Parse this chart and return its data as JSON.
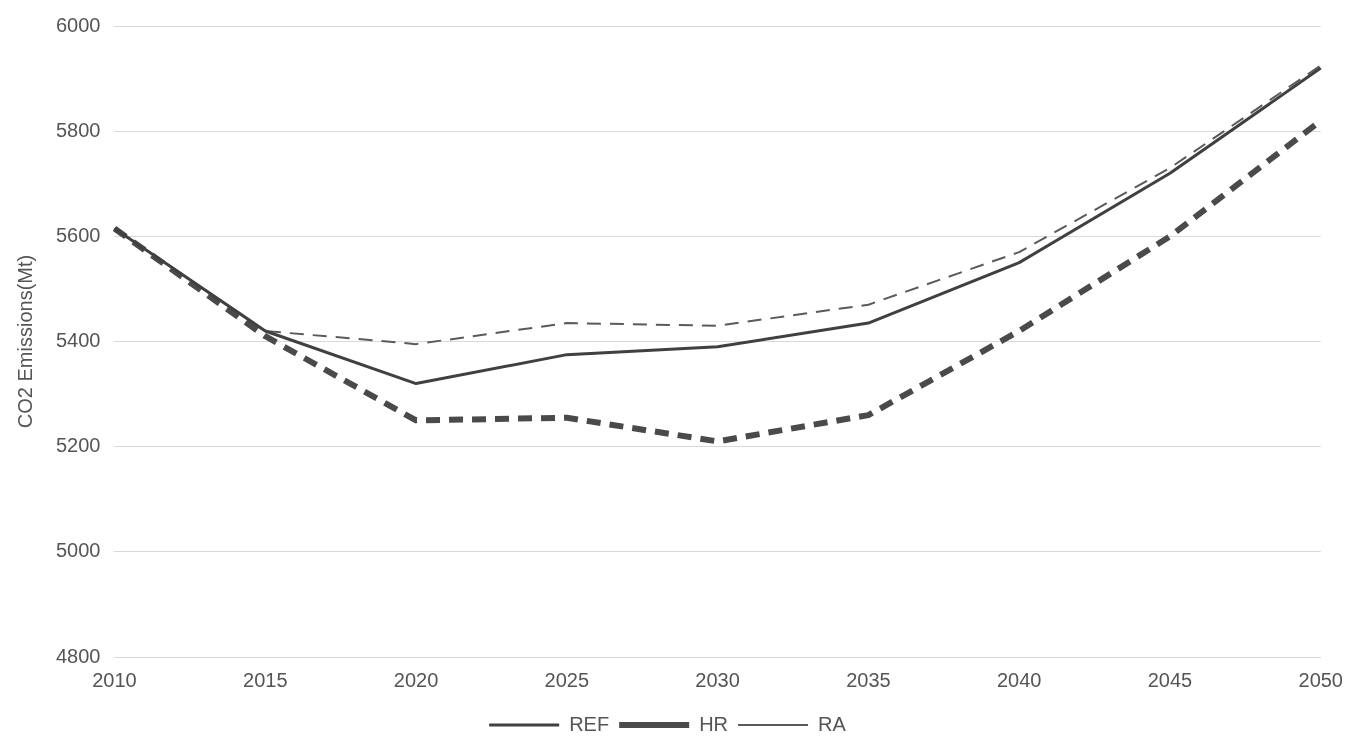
{
  "chart_data": {
    "type": "line",
    "ylabel": "CO2 Emissions(Mt)",
    "categories": [
      "2010",
      "2015",
      "2020",
      "2025",
      "2030",
      "2035",
      "2040",
      "2045",
      "2050"
    ],
    "series": [
      {
        "name": "REF",
        "color": "#404040",
        "line_style": "solid",
        "values": [
          5615,
          5420,
          5320,
          5375,
          5390,
          5435,
          5550,
          5720,
          5920
        ]
      },
      {
        "name": "HR",
        "color": "#4a4a4a",
        "line_style": "dashed",
        "values": [
          5615,
          5410,
          5250,
          5255,
          5210,
          5260,
          5420,
          5600,
          5820
        ]
      },
      {
        "name": "RA",
        "color": "#5a5a5a",
        "line_style": "dashed",
        "values": [
          5615,
          5420,
          5395,
          5435,
          5430,
          5470,
          5570,
          5730,
          5925
        ]
      }
    ],
    "ylim": [
      4800,
      6000
    ],
    "yticks": [
      4800,
      5000,
      5200,
      5400,
      5600,
      5800,
      6000
    ],
    "grid": "y",
    "legend": "bottom",
    "marker": "none"
  }
}
